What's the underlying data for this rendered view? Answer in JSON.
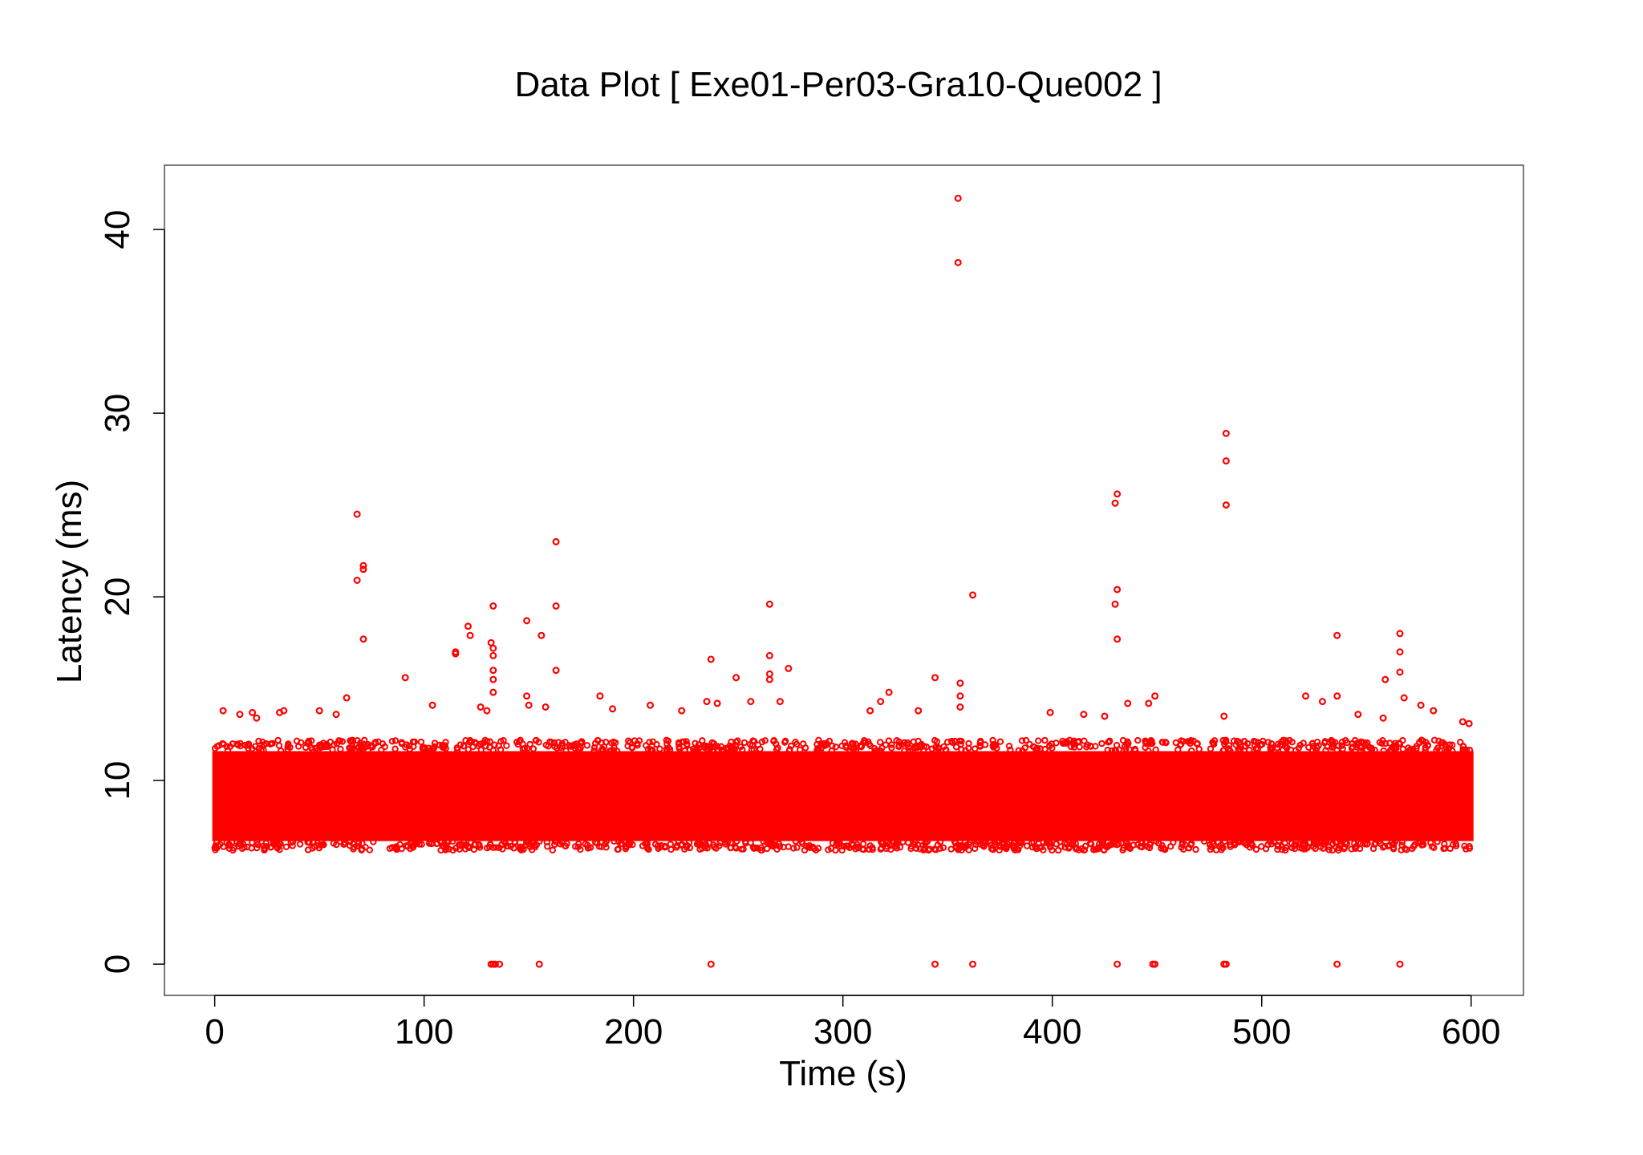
{
  "chart_data": {
    "type": "scatter",
    "title": "Data Plot [ Exe01-Per03-Gra10-Que002 ]",
    "xlabel": "Time (s)",
    "ylabel": "Latency (ms)",
    "xlim": [
      -24,
      625
    ],
    "ylim": [
      -1.7,
      43.5
    ],
    "xticks": [
      0,
      100,
      200,
      300,
      400,
      500,
      600
    ],
    "yticks": [
      0,
      10,
      20,
      30,
      40
    ],
    "grid": false,
    "legend": "none",
    "marker": "open-circle",
    "series_color": "#ff0000",
    "dense_band": {
      "x_range": [
        0,
        600
      ],
      "y_range": [
        6.2,
        12.2
      ],
      "core_y_range": [
        6.7,
        11.6
      ],
      "description_note": "tens of thousands of overlapping points"
    },
    "outliers": [
      {
        "x": 355,
        "y": 41.7
      },
      {
        "x": 355,
        "y": 38.2
      },
      {
        "x": 483,
        "y": 28.9
      },
      {
        "x": 483,
        "y": 27.4
      },
      {
        "x": 483,
        "y": 25.0
      },
      {
        "x": 431,
        "y": 25.6
      },
      {
        "x": 430,
        "y": 25.1
      },
      {
        "x": 431,
        "y": 20.4
      },
      {
        "x": 430,
        "y": 19.6
      },
      {
        "x": 431,
        "y": 17.7
      },
      {
        "x": 68,
        "y": 24.5
      },
      {
        "x": 68,
        "y": 20.9
      },
      {
        "x": 71,
        "y": 21.7
      },
      {
        "x": 71,
        "y": 21.5
      },
      {
        "x": 71,
        "y": 17.7
      },
      {
        "x": 163,
        "y": 23.0
      },
      {
        "x": 163,
        "y": 19.5
      },
      {
        "x": 163,
        "y": 16.0
      },
      {
        "x": 156,
        "y": 17.9
      },
      {
        "x": 149,
        "y": 18.7
      },
      {
        "x": 133,
        "y": 19.5
      },
      {
        "x": 132,
        "y": 17.5
      },
      {
        "x": 133,
        "y": 17.2
      },
      {
        "x": 133,
        "y": 16.8
      },
      {
        "x": 133,
        "y": 16.0
      },
      {
        "x": 133,
        "y": 15.5
      },
      {
        "x": 133,
        "y": 14.8
      },
      {
        "x": 121,
        "y": 18.4
      },
      {
        "x": 122,
        "y": 17.9
      },
      {
        "x": 115,
        "y": 17.0
      },
      {
        "x": 115,
        "y": 16.9
      },
      {
        "x": 265,
        "y": 19.6
      },
      {
        "x": 265,
        "y": 16.8
      },
      {
        "x": 265,
        "y": 15.8
      },
      {
        "x": 265,
        "y": 15.5
      },
      {
        "x": 237,
        "y": 16.6
      },
      {
        "x": 274,
        "y": 16.1
      },
      {
        "x": 362,
        "y": 20.1
      },
      {
        "x": 344,
        "y": 15.6
      },
      {
        "x": 356,
        "y": 15.3
      },
      {
        "x": 356,
        "y": 14.6
      },
      {
        "x": 336,
        "y": 13.8
      },
      {
        "x": 536,
        "y": 17.9
      },
      {
        "x": 536,
        "y": 14.6
      },
      {
        "x": 566,
        "y": 18.0
      },
      {
        "x": 566,
        "y": 17.0
      },
      {
        "x": 566,
        "y": 15.9
      },
      {
        "x": 559,
        "y": 15.5
      },
      {
        "x": 568,
        "y": 14.5
      },
      {
        "x": 521,
        "y": 14.6
      },
      {
        "x": 529,
        "y": 14.3
      },
      {
        "x": 91,
        "y": 15.6
      },
      {
        "x": 63,
        "y": 14.5
      },
      {
        "x": 149,
        "y": 14.6
      },
      {
        "x": 150,
        "y": 14.1
      },
      {
        "x": 184,
        "y": 14.6
      },
      {
        "x": 249,
        "y": 15.6
      },
      {
        "x": 322,
        "y": 14.8
      },
      {
        "x": 449,
        "y": 14.6
      },
      {
        "x": 4,
        "y": 13.8
      },
      {
        "x": 33,
        "y": 13.8
      },
      {
        "x": 31,
        "y": 13.7
      },
      {
        "x": 18,
        "y": 13.7
      },
      {
        "x": 12,
        "y": 13.6
      },
      {
        "x": 20,
        "y": 13.4
      },
      {
        "x": 50,
        "y": 13.8
      },
      {
        "x": 58,
        "y": 13.6
      },
      {
        "x": 104,
        "y": 14.1
      },
      {
        "x": 127,
        "y": 14.0
      },
      {
        "x": 130,
        "y": 13.8
      },
      {
        "x": 158,
        "y": 14.0
      },
      {
        "x": 190,
        "y": 13.9
      },
      {
        "x": 208,
        "y": 14.1
      },
      {
        "x": 223,
        "y": 13.8
      },
      {
        "x": 235,
        "y": 14.3
      },
      {
        "x": 240,
        "y": 14.2
      },
      {
        "x": 256,
        "y": 14.3
      },
      {
        "x": 270,
        "y": 14.3
      },
      {
        "x": 313,
        "y": 13.8
      },
      {
        "x": 318,
        "y": 14.3
      },
      {
        "x": 356,
        "y": 14.0
      },
      {
        "x": 399,
        "y": 13.7
      },
      {
        "x": 415,
        "y": 13.6
      },
      {
        "x": 425,
        "y": 13.5
      },
      {
        "x": 436,
        "y": 14.2
      },
      {
        "x": 446,
        "y": 14.2
      },
      {
        "x": 482,
        "y": 13.5
      },
      {
        "x": 546,
        "y": 13.6
      },
      {
        "x": 558,
        "y": 13.4
      },
      {
        "x": 576,
        "y": 14.1
      },
      {
        "x": 582,
        "y": 13.8
      },
      {
        "x": 596,
        "y": 13.2
      },
      {
        "x": 599,
        "y": 13.1
      },
      {
        "x": 132,
        "y": 0
      },
      {
        "x": 133,
        "y": 0
      },
      {
        "x": 134,
        "y": 0
      },
      {
        "x": 136,
        "y": 0
      },
      {
        "x": 155,
        "y": 0
      },
      {
        "x": 237,
        "y": 0
      },
      {
        "x": 344,
        "y": 0
      },
      {
        "x": 362,
        "y": 0
      },
      {
        "x": 431,
        "y": 0
      },
      {
        "x": 448,
        "y": 0
      },
      {
        "x": 449,
        "y": 0
      },
      {
        "x": 482,
        "y": 0
      },
      {
        "x": 483,
        "y": 0
      },
      {
        "x": 536,
        "y": 0
      },
      {
        "x": 566,
        "y": 0
      }
    ]
  }
}
